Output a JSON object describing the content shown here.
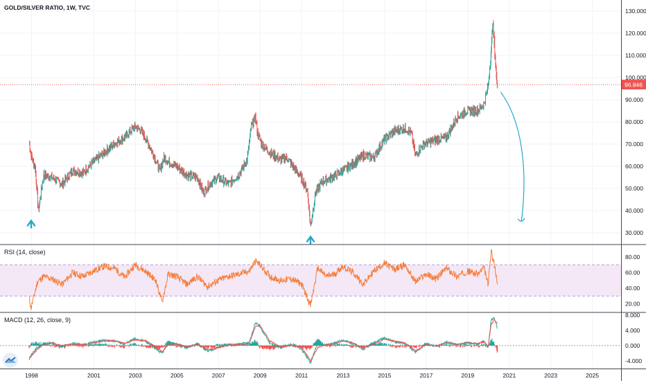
{
  "main_pane": {
    "title": "GOLD/SILVER RATIO, 1W, TVC",
    "price_axis_ticks": [
      "130.000",
      "120.000",
      "110.000",
      "100.000",
      "90.000",
      "80.000",
      "70.000",
      "60.000",
      "50.000",
      "40.000",
      "30.000"
    ],
    "last_price_label": "96.846",
    "colors": {
      "up": "#26a69a",
      "down": "#ef5350",
      "last_price": "#ef5350",
      "annotation": "#26a6c6"
    }
  },
  "rsi_pane": {
    "title": "RSI (14, close)",
    "axis_ticks": [
      "80.00",
      "60.00",
      "40.00",
      "20.00"
    ],
    "color": "#f57c3a",
    "band_color": "#e1bee7"
  },
  "macd_pane": {
    "title": "MACD (12, 26, close, 9)",
    "axis_ticks": [
      "8.000",
      "4.000",
      "0.000",
      "-4.000"
    ],
    "macd_color": "#26a69a",
    "signal_color": "#ef5350"
  },
  "time_axis": {
    "labels": [
      "1998",
      "2001",
      "2003",
      "2005",
      "2007",
      "2009",
      "2011",
      "2013",
      "2015",
      "2017",
      "2019",
      "2021",
      "2023",
      "2025"
    ]
  },
  "chart_data": [
    {
      "type": "line",
      "title": "GOLD/SILVER RATIO, 1W, TVC",
      "ylim": [
        25,
        135
      ],
      "xlim": [
        1996.5,
        2026.4
      ],
      "series": [
        {
          "x": [
            1997.9,
            1998.0,
            1998.1,
            1998.2,
            1998.35,
            1998.6,
            1999.0,
            1999.5,
            2000.0,
            2000.5,
            2001.0,
            2001.5,
            2002.0,
            2002.5,
            2003.0,
            2003.3,
            2003.6,
            2003.9,
            2004.2,
            2004.4,
            2004.6,
            2005.0,
            2005.5,
            2006.0,
            2006.3,
            2006.6,
            2007.0,
            2007.5,
            2008.0,
            2008.4,
            2008.6,
            2008.8,
            2008.9,
            2009.1,
            2009.5,
            2010.0,
            2010.3,
            2010.6,
            2011.0,
            2011.3,
            2011.45,
            2011.7,
            2012.0,
            2012.5,
            2013.0,
            2013.5,
            2014.0,
            2014.5,
            2015.0,
            2015.5,
            2016.0,
            2016.3,
            2016.5,
            2016.9,
            2017.5,
            2018.0,
            2018.5,
            2019.0,
            2019.5,
            2019.8,
            2020.0,
            2020.15,
            2020.22,
            2020.3,
            2020.4,
            2020.45
          ],
          "values": [
            71,
            65,
            62,
            59,
            40,
            56,
            55,
            52,
            58,
            57,
            62,
            66,
            70,
            73,
            78,
            76,
            71,
            65,
            58,
            64,
            62,
            60,
            56,
            55,
            48,
            52,
            55,
            52,
            56,
            63,
            78,
            82,
            75,
            70,
            66,
            63,
            64,
            60,
            55,
            49,
            33,
            48,
            53,
            55,
            58,
            61,
            65,
            64,
            72,
            76,
            77,
            75,
            65,
            70,
            72,
            73,
            82,
            85,
            85,
            88,
            96,
            112,
            125,
            115,
            100,
            96.8
          ]
        }
      ]
    },
    {
      "type": "line",
      "title": "RSI (14, close)",
      "ylim": [
        10,
        95
      ],
      "bands": [
        30,
        70
      ],
      "series": [
        {
          "x": [
            1997.9,
            1998.0,
            1998.3,
            1998.6,
            1999.0,
            1999.5,
            2000.0,
            2000.5,
            2001.0,
            2001.5,
            2002.0,
            2002.5,
            2003.0,
            2003.5,
            2004.0,
            2004.3,
            2004.6,
            2005.0,
            2005.5,
            2006.0,
            2006.5,
            2007.0,
            2007.5,
            2008.0,
            2008.5,
            2008.8,
            2009.0,
            2009.5,
            2010.0,
            2010.5,
            2011.0,
            2011.3,
            2011.45,
            2011.8,
            2012.2,
            2012.6,
            2013.0,
            2013.5,
            2014.0,
            2014.5,
            2015.0,
            2015.5,
            2016.0,
            2016.5,
            2017.0,
            2017.5,
            2018.0,
            2018.5,
            2019.0,
            2019.5,
            2019.8,
            2020.0,
            2020.15,
            2020.3,
            2020.45
          ],
          "values": [
            28,
            15,
            48,
            55,
            52,
            45,
            60,
            55,
            62,
            68,
            66,
            54,
            70,
            62,
            50,
            22,
            58,
            55,
            45,
            55,
            42,
            50,
            55,
            58,
            62,
            75,
            70,
            55,
            50,
            52,
            46,
            28,
            18,
            66,
            55,
            58,
            68,
            60,
            45,
            62,
            72,
            64,
            70,
            48,
            58,
            52,
            66,
            55,
            62,
            58,
            66,
            45,
            88,
            70,
            45
          ]
        }
      ]
    },
    {
      "type": "line",
      "title": "MACD (12, 26, close, 9)",
      "ylim": [
        -6,
        8.5
      ],
      "series": [
        {
          "name": "MACD",
          "x": [
            1997.9,
            1998.0,
            1998.3,
            1998.6,
            1999.0,
            1999.5,
            2000.0,
            2000.5,
            2001.0,
            2001.5,
            2002.0,
            2002.5,
            2003.0,
            2003.5,
            2004.0,
            2004.3,
            2004.6,
            2005.0,
            2005.5,
            2006.0,
            2006.5,
            2007.0,
            2007.5,
            2008.0,
            2008.5,
            2008.8,
            2009.0,
            2009.5,
            2010.0,
            2010.5,
            2011.0,
            2011.3,
            2011.45,
            2011.8,
            2012.2,
            2012.6,
            2013.0,
            2013.5,
            2014.0,
            2014.5,
            2015.0,
            2015.5,
            2016.0,
            2016.5,
            2017.0,
            2017.5,
            2018.0,
            2018.5,
            2019.0,
            2019.5,
            2019.8,
            2020.0,
            2020.15,
            2020.3,
            2020.45
          ],
          "values": [
            -3.5,
            -2.5,
            -0.5,
            0.5,
            0.8,
            -0.3,
            0.6,
            0.2,
            0.9,
            1.4,
            1.2,
            0.4,
            1.8,
            1.1,
            -0.8,
            -2.0,
            1.0,
            0.3,
            -0.6,
            0.5,
            -1.5,
            -0.4,
            0.2,
            0.4,
            0.8,
            6.0,
            5.0,
            0.6,
            -0.6,
            0.3,
            -0.8,
            -3.2,
            -4.5,
            0.8,
            0.2,
            0.6,
            1.5,
            0.5,
            -1.0,
            0.8,
            2.0,
            1.0,
            0.6,
            -1.8,
            0.5,
            -0.2,
            1.0,
            0.2,
            0.8,
            0.4,
            1.2,
            -0.5,
            6.8,
            7.2,
            4.5
          ]
        },
        {
          "name": "Signal",
          "x": [
            1997.9,
            1998.0,
            1998.3,
            1998.6,
            1999.0,
            1999.5,
            2000.0,
            2000.5,
            2001.0,
            2001.5,
            2002.0,
            2002.5,
            2003.0,
            2003.5,
            2004.0,
            2004.3,
            2004.6,
            2005.0,
            2005.5,
            2006.0,
            2006.5,
            2007.0,
            2007.5,
            2008.0,
            2008.5,
            2008.8,
            2009.0,
            2009.5,
            2010.0,
            2010.5,
            2011.0,
            2011.3,
            2011.45,
            2011.8,
            2012.2,
            2012.6,
            2013.0,
            2013.5,
            2014.0,
            2014.5,
            2015.0,
            2015.5,
            2016.0,
            2016.5,
            2017.0,
            2017.5,
            2018.0,
            2018.5,
            2019.0,
            2019.5,
            2019.8,
            2020.0,
            2020.15,
            2020.3,
            2020.45
          ],
          "values": [
            -3.2,
            -2.8,
            -1.0,
            0.2,
            0.7,
            0.0,
            0.4,
            0.3,
            0.7,
            1.2,
            1.3,
            0.6,
            1.5,
            1.3,
            -0.3,
            -1.6,
            0.2,
            0.5,
            -0.3,
            0.3,
            -1.0,
            -0.6,
            0.1,
            0.3,
            0.6,
            5.0,
            5.4,
            1.2,
            -0.3,
            0.1,
            -0.5,
            -2.6,
            -4.0,
            -0.5,
            0.3,
            0.5,
            1.2,
            0.7,
            -0.6,
            0.4,
            1.7,
            1.2,
            0.7,
            -1.4,
            0.2,
            -0.1,
            0.8,
            0.3,
            0.7,
            0.5,
            1.0,
            -0.2,
            5.5,
            6.8,
            5.8
          ]
        }
      ]
    }
  ]
}
